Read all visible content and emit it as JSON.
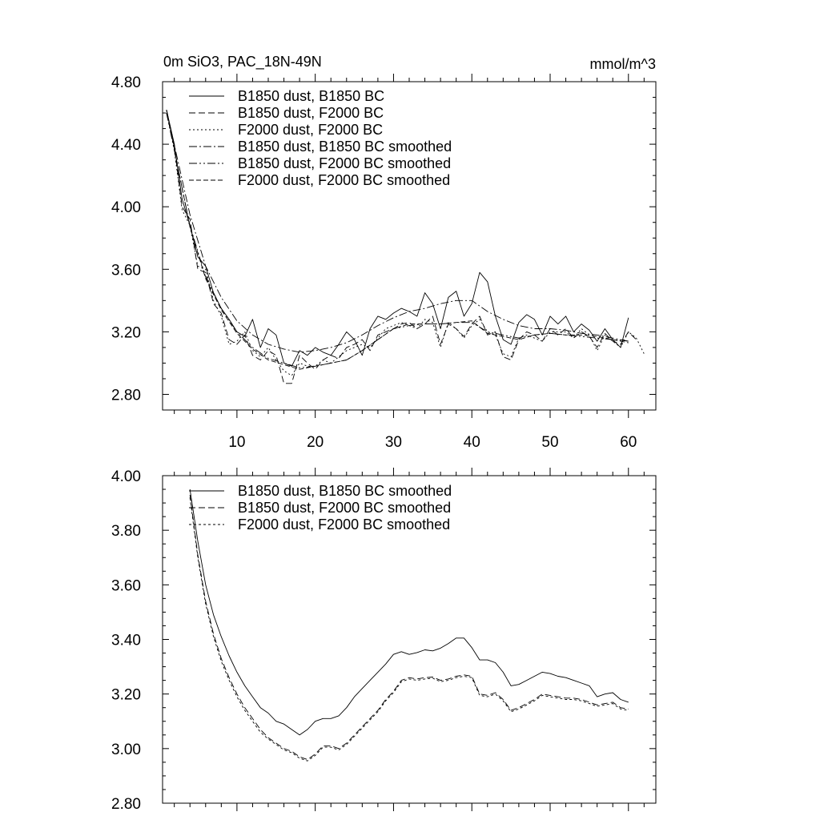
{
  "chart_data": [
    {
      "type": "line",
      "title": "0m SiO3, PAC_18N-49N",
      "units": "mmol/m^3",
      "xlabel": "",
      "ylabel": "",
      "xlim": [
        0.5,
        63.5
      ],
      "ylim": [
        2.7,
        4.8
      ],
      "yticks": [
        2.8,
        3.2,
        3.6,
        4.0,
        4.4,
        4.8
      ],
      "ytick_labels": [
        "2.80",
        "3.20",
        "3.60",
        "4.00",
        "4.40",
        "4.80"
      ],
      "xticks": [
        10,
        20,
        30,
        40,
        50,
        60
      ],
      "xtick_labels": [
        "10",
        "20",
        "30",
        "40",
        "50",
        "60"
      ],
      "legend": "top-left",
      "series": [
        {
          "name": "B1850 dust, B1850 BC",
          "dash": "solid",
          "x": [
            1,
            2,
            3,
            4,
            5,
            6,
            7,
            8,
            9,
            10,
            11,
            12,
            13,
            14,
            15,
            16,
            17,
            18,
            19,
            20,
            21,
            22,
            23,
            24,
            25,
            26,
            27,
            28,
            29,
            30,
            31,
            32,
            33,
            34,
            35,
            36,
            37,
            38,
            39,
            40,
            41,
            42,
            43,
            44,
            45,
            46,
            47,
            48,
            49,
            50,
            51,
            52,
            53,
            54,
            55,
            56,
            57,
            58,
            59,
            60
          ],
          "values": [
            4.62,
            4.4,
            4.05,
            3.88,
            3.68,
            3.62,
            3.45,
            3.35,
            3.28,
            3.2,
            3.17,
            3.28,
            3.1,
            3.22,
            3.18,
            3.0,
            2.98,
            3.08,
            3.05,
            3.1,
            3.07,
            3.05,
            3.12,
            3.2,
            3.15,
            3.05,
            3.22,
            3.3,
            3.28,
            3.32,
            3.35,
            3.33,
            3.3,
            3.45,
            3.38,
            3.22,
            3.42,
            3.46,
            3.3,
            3.38,
            3.58,
            3.52,
            3.3,
            3.15,
            3.12,
            3.26,
            3.31,
            3.28,
            3.18,
            3.3,
            3.25,
            3.3,
            3.2,
            3.25,
            3.21,
            3.14,
            3.22,
            3.15,
            3.1,
            3.29
          ]
        },
        {
          "name": "B1850 dust, F2000 BC",
          "dash": "8 4",
          "x": [
            1,
            2,
            3,
            4,
            5,
            6,
            7,
            8,
            9,
            10,
            11,
            12,
            13,
            14,
            15,
            16,
            17,
            18,
            19,
            20,
            21,
            22,
            23,
            24,
            25,
            26,
            27,
            28,
            29,
            30,
            31,
            32,
            33,
            34,
            35,
            36,
            37,
            38,
            39,
            40,
            41,
            42,
            43,
            44,
            45,
            46,
            47,
            48,
            49,
            50,
            51,
            52,
            53,
            54,
            55,
            56,
            57,
            58,
            59,
            60,
            61
          ],
          "values": [
            4.6,
            4.38,
            4.0,
            3.92,
            3.6,
            3.58,
            3.38,
            3.32,
            3.15,
            3.12,
            3.18,
            3.05,
            3.02,
            3.08,
            3.05,
            2.87,
            2.87,
            3.05,
            3.0,
            2.96,
            3.02,
            3.05,
            3.03,
            3.1,
            3.12,
            3.15,
            3.08,
            3.18,
            3.2,
            3.22,
            3.25,
            3.26,
            3.22,
            3.25,
            3.3,
            3.12,
            3.25,
            3.22,
            3.17,
            3.25,
            3.3,
            3.18,
            3.2,
            3.04,
            3.02,
            3.15,
            3.2,
            3.18,
            3.14,
            3.22,
            3.18,
            3.22,
            3.16,
            3.2,
            3.17,
            3.1,
            3.19,
            3.14,
            3.12,
            3.2,
            3.15
          ]
        },
        {
          "name": "F2000 dust, F2000 BC",
          "dash": "2 3",
          "x": [
            1,
            2,
            3,
            4,
            5,
            6,
            7,
            8,
            9,
            10,
            11,
            12,
            13,
            14,
            15,
            16,
            17,
            18,
            19,
            20,
            21,
            22,
            23,
            24,
            25,
            26,
            27,
            28,
            29,
            30,
            31,
            32,
            33,
            34,
            35,
            36,
            37,
            38,
            39,
            40,
            41,
            42,
            43,
            44,
            45,
            46,
            47,
            48,
            49,
            50,
            51,
            52,
            53,
            54,
            55,
            56,
            57,
            58,
            59,
            60,
            61,
            62
          ],
          "values": [
            4.62,
            4.36,
            3.98,
            3.88,
            3.62,
            3.6,
            3.4,
            3.3,
            3.12,
            3.14,
            3.2,
            3.08,
            3.04,
            3.1,
            3.02,
            2.95,
            2.92,
            3.0,
            2.98,
            2.98,
            3.02,
            3.0,
            3.04,
            3.08,
            3.1,
            3.12,
            3.1,
            3.16,
            3.22,
            3.24,
            3.26,
            3.24,
            3.22,
            3.28,
            3.26,
            3.1,
            3.26,
            3.22,
            3.16,
            3.24,
            3.28,
            3.2,
            3.18,
            3.06,
            3.04,
            3.16,
            3.18,
            3.16,
            3.14,
            3.2,
            3.2,
            3.2,
            3.16,
            3.22,
            3.18,
            3.08,
            3.18,
            3.14,
            3.1,
            3.2,
            3.16,
            3.06
          ]
        },
        {
          "name": "B1850 dust, B1850 BC smoothed",
          "dash": "10 3 2 3",
          "x": [
            1,
            4,
            6,
            8,
            10,
            12,
            14,
            16,
            18,
            20,
            22,
            24,
            26,
            28,
            30,
            32,
            34,
            36,
            38,
            40,
            42,
            44,
            46,
            48,
            50,
            52,
            54,
            56,
            58,
            60
          ],
          "values": [
            4.62,
            3.95,
            3.62,
            3.42,
            3.27,
            3.18,
            3.12,
            3.09,
            3.07,
            3.08,
            3.1,
            3.13,
            3.18,
            3.24,
            3.29,
            3.33,
            3.35,
            3.38,
            3.4,
            3.4,
            3.33,
            3.28,
            3.24,
            3.22,
            3.22,
            3.21,
            3.19,
            3.18,
            3.16,
            3.14
          ]
        },
        {
          "name": "B1850 dust, F2000 BC smoothed",
          "dash": "10 3 2 3 2 3",
          "x": [
            1,
            4,
            6,
            8,
            10,
            12,
            14,
            16,
            18,
            20,
            22,
            24,
            26,
            28,
            30,
            32,
            34,
            36,
            38,
            40,
            42,
            44,
            46,
            48,
            50,
            52,
            54,
            56,
            58,
            60
          ],
          "values": [
            4.6,
            3.88,
            3.55,
            3.35,
            3.2,
            3.1,
            3.03,
            3.0,
            2.97,
            2.98,
            3.0,
            3.02,
            3.08,
            3.15,
            3.22,
            3.24,
            3.25,
            3.25,
            3.26,
            3.26,
            3.2,
            3.18,
            3.16,
            3.18,
            3.19,
            3.18,
            3.17,
            3.16,
            3.15,
            3.14
          ]
        },
        {
          "name": "F2000 dust, F2000 BC smoothed",
          "dash": "6 3",
          "x": [
            1,
            4,
            6,
            8,
            10,
            12,
            14,
            16,
            18,
            20,
            22,
            24,
            26,
            28,
            30,
            32,
            34,
            36,
            38,
            40,
            42,
            44,
            46,
            48,
            50,
            52,
            54,
            56,
            58,
            60
          ],
          "values": [
            4.62,
            3.87,
            3.54,
            3.34,
            3.19,
            3.09,
            3.02,
            2.99,
            2.96,
            2.98,
            3.0,
            3.02,
            3.08,
            3.15,
            3.22,
            3.25,
            3.25,
            3.25,
            3.26,
            3.27,
            3.19,
            3.17,
            3.15,
            3.18,
            3.19,
            3.18,
            3.18,
            3.17,
            3.15,
            3.13
          ]
        }
      ]
    },
    {
      "type": "line",
      "title": "",
      "xlabel": "",
      "ylabel": "",
      "xlim": [
        0.5,
        63.5
      ],
      "ylim": [
        2.8,
        4.0
      ],
      "yticks": [
        2.8,
        3.0,
        3.2,
        3.4,
        3.6,
        3.8,
        4.0
      ],
      "ytick_labels": [
        "2.80",
        "3.00",
        "3.20",
        "3.40",
        "3.60",
        "3.80",
        "4.00"
      ],
      "xticks": [
        10,
        20,
        30,
        40,
        50,
        60
      ],
      "xtick_labels": [],
      "legend": "top-left",
      "series": [
        {
          "name": "B1850 dust, B1850 BC smoothed",
          "dash": "solid",
          "x": [
            4,
            5,
            6,
            7,
            8,
            9,
            10,
            11,
            12,
            13,
            14,
            15,
            16,
            17,
            18,
            19,
            20,
            21,
            22,
            23,
            24,
            25,
            26,
            27,
            28,
            29,
            30,
            31,
            32,
            33,
            34,
            35,
            36,
            37,
            38,
            39,
            40,
            41,
            42,
            43,
            44,
            45,
            46,
            47,
            48,
            49,
            50,
            51,
            52,
            53,
            54,
            55,
            56,
            57,
            58,
            59,
            60
          ],
          "values": [
            3.95,
            3.76,
            3.6,
            3.49,
            3.41,
            3.34,
            3.28,
            3.23,
            3.19,
            3.15,
            3.13,
            3.1,
            3.09,
            3.07,
            3.05,
            3.07,
            3.1,
            3.11,
            3.11,
            3.12,
            3.15,
            3.19,
            3.22,
            3.25,
            3.28,
            3.31,
            3.345,
            3.355,
            3.345,
            3.352,
            3.362,
            3.358,
            3.368,
            3.385,
            3.405,
            3.405,
            3.37,
            3.325,
            3.325,
            3.315,
            3.28,
            3.23,
            3.235,
            3.25,
            3.265,
            3.28,
            3.275,
            3.265,
            3.26,
            3.25,
            3.24,
            3.23,
            3.19,
            3.2,
            3.205,
            3.18,
            3.17
          ]
        },
        {
          "name": "B1850 dust, F2000 BC smoothed",
          "dash": "8 4",
          "x": [
            4,
            5,
            6,
            7,
            8,
            9,
            10,
            11,
            12,
            13,
            14,
            15,
            16,
            17,
            18,
            19,
            20,
            21,
            22,
            23,
            24,
            25,
            26,
            27,
            28,
            29,
            30,
            31,
            32,
            33,
            34,
            35,
            36,
            37,
            38,
            39,
            40,
            41,
            42,
            43,
            44,
            45,
            46,
            47,
            48,
            49,
            50,
            51,
            52,
            53,
            54,
            55,
            56,
            57,
            58,
            59,
            60
          ],
          "values": [
            3.93,
            3.71,
            3.54,
            3.42,
            3.33,
            3.26,
            3.2,
            3.15,
            3.11,
            3.07,
            3.04,
            3.02,
            3.0,
            2.99,
            2.97,
            2.96,
            2.98,
            3.01,
            3.01,
            3.0,
            3.02,
            3.05,
            3.08,
            3.11,
            3.14,
            3.18,
            3.21,
            3.25,
            3.26,
            3.255,
            3.26,
            3.262,
            3.25,
            3.255,
            3.265,
            3.27,
            3.265,
            3.2,
            3.195,
            3.205,
            3.18,
            3.14,
            3.15,
            3.165,
            3.18,
            3.2,
            3.195,
            3.19,
            3.185,
            3.185,
            3.18,
            3.17,
            3.16,
            3.165,
            3.17,
            3.15,
            3.145
          ]
        },
        {
          "name": "F2000 dust, F2000 BC smoothed",
          "dash": "3 3",
          "x": [
            4,
            5,
            6,
            7,
            8,
            9,
            10,
            11,
            12,
            13,
            14,
            15,
            16,
            17,
            18,
            19,
            20,
            21,
            22,
            23,
            24,
            25,
            26,
            27,
            28,
            29,
            30,
            31,
            32,
            33,
            34,
            35,
            36,
            37,
            38,
            39,
            40,
            41,
            42,
            43,
            44,
            45,
            46,
            47,
            48,
            49,
            50,
            51,
            52,
            53,
            54,
            55,
            56,
            57,
            58,
            59,
            60
          ],
          "values": [
            3.92,
            3.7,
            3.53,
            3.41,
            3.32,
            3.25,
            3.19,
            3.14,
            3.1,
            3.06,
            3.035,
            3.015,
            2.995,
            2.985,
            2.965,
            2.955,
            2.975,
            3.005,
            3.005,
            2.995,
            3.015,
            3.045,
            3.075,
            3.105,
            3.135,
            3.175,
            3.205,
            3.245,
            3.255,
            3.25,
            3.255,
            3.258,
            3.245,
            3.25,
            3.26,
            3.265,
            3.26,
            3.195,
            3.19,
            3.2,
            3.175,
            3.135,
            3.145,
            3.16,
            3.175,
            3.195,
            3.19,
            3.185,
            3.18,
            3.18,
            3.175,
            3.165,
            3.155,
            3.16,
            3.165,
            3.145,
            3.14
          ]
        }
      ]
    }
  ]
}
